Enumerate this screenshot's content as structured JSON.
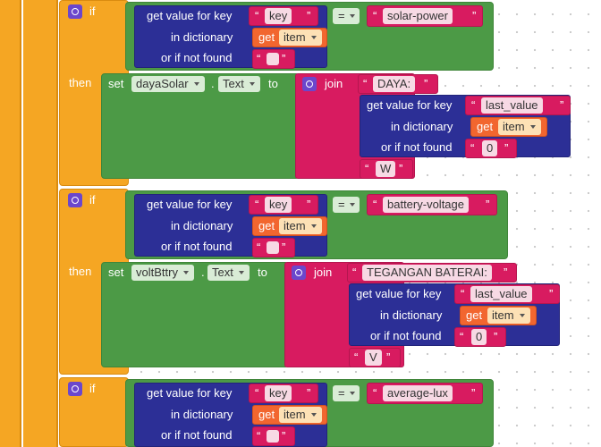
{
  "labels": {
    "if": "if",
    "then": "then",
    "set": "set",
    "dot": ".",
    "to": "to",
    "join": "join",
    "get_value_for_key": "get value for key",
    "in_dictionary": "in dictionary",
    "or_if_not_found": "or if not found",
    "get": "get",
    "eq": "=",
    "open_quote": "“",
    "close_quote": "”"
  },
  "blocks": [
    {
      "key_literal": "key",
      "dict_var": "item",
      "compare_literal": "solar-power",
      "component": "dayaSolar",
      "property": "Text",
      "join_prefix": "DAYA:",
      "inner_key": "last_value",
      "inner_dict_var": "item",
      "default_value": "0",
      "join_suffix": "W"
    },
    {
      "key_literal": "key",
      "dict_var": "item",
      "compare_literal": "battery-voltage",
      "component": "voltBttry",
      "property": "Text",
      "join_prefix": "TEGANGAN BATERAI:",
      "inner_key": "last_value",
      "inner_dict_var": "item",
      "default_value": "0",
      "join_suffix": "V"
    },
    {
      "key_literal": "key",
      "dict_var": "item",
      "compare_literal": "average-lux"
    }
  ],
  "colors": {
    "control": "#f5a623",
    "logic": "#4c9a46",
    "dictionary": "#2c2f96",
    "text": "#d81b60",
    "variable": "#f2662f",
    "mutator": "#6b47cc"
  }
}
